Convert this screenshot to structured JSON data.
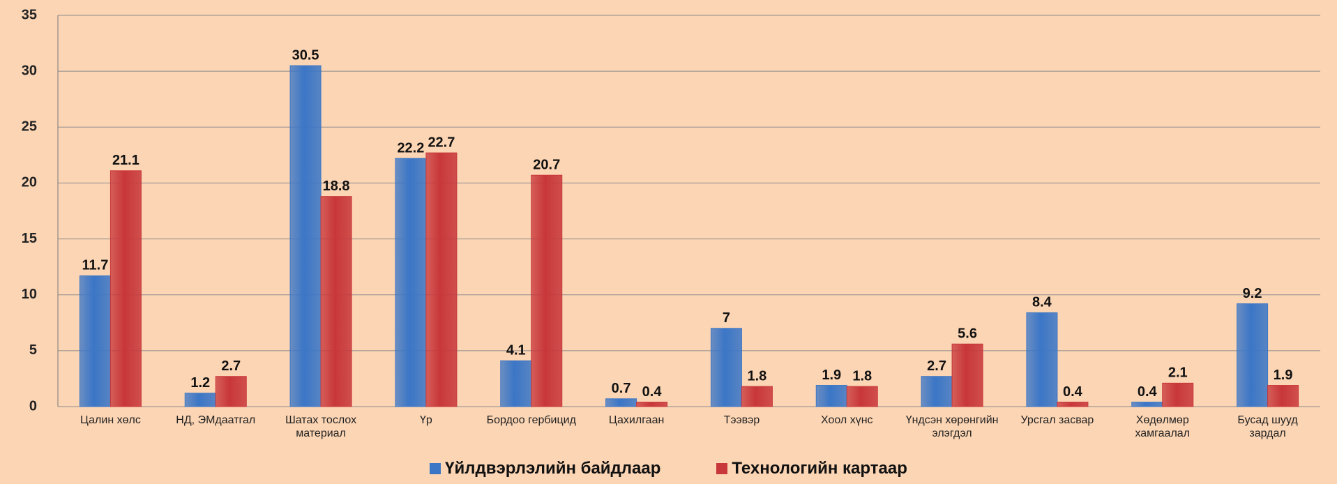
{
  "chart_data": {
    "type": "bar",
    "categories": [
      "Цалин хөлс",
      "НД, ЭМдаатгал",
      "Шатах тослох материал",
      "Үр",
      "Бордоо гербицид",
      "Цахилгаан",
      "Тээвэр",
      "Хоол хүнс",
      "Үндсэн хөрөнгийн элэгдэл",
      "Урсгал засвар",
      "Хөдөлмөр хамгаалал",
      "Бусад шууд зардал"
    ],
    "series": [
      {
        "name": "Үйлдвэрлэлийн байдлаар",
        "color": "#3b76c6",
        "values": [
          11.7,
          1.2,
          30.5,
          22.2,
          4.1,
          0.7,
          7,
          1.9,
          2.7,
          8.4,
          0.4,
          9.2
        ]
      },
      {
        "name": "Технологийн картаар",
        "color": "#c8373a",
        "values": [
          21.1,
          2.7,
          18.8,
          22.7,
          20.7,
          0.4,
          1.8,
          1.8,
          5.6,
          0.4,
          2.1,
          1.9
        ]
      }
    ],
    "ylim": [
      0,
      35
    ],
    "yticks": [
      0,
      5,
      10,
      15,
      20,
      25,
      30,
      35
    ],
    "grid": true,
    "legend": "bottom"
  }
}
